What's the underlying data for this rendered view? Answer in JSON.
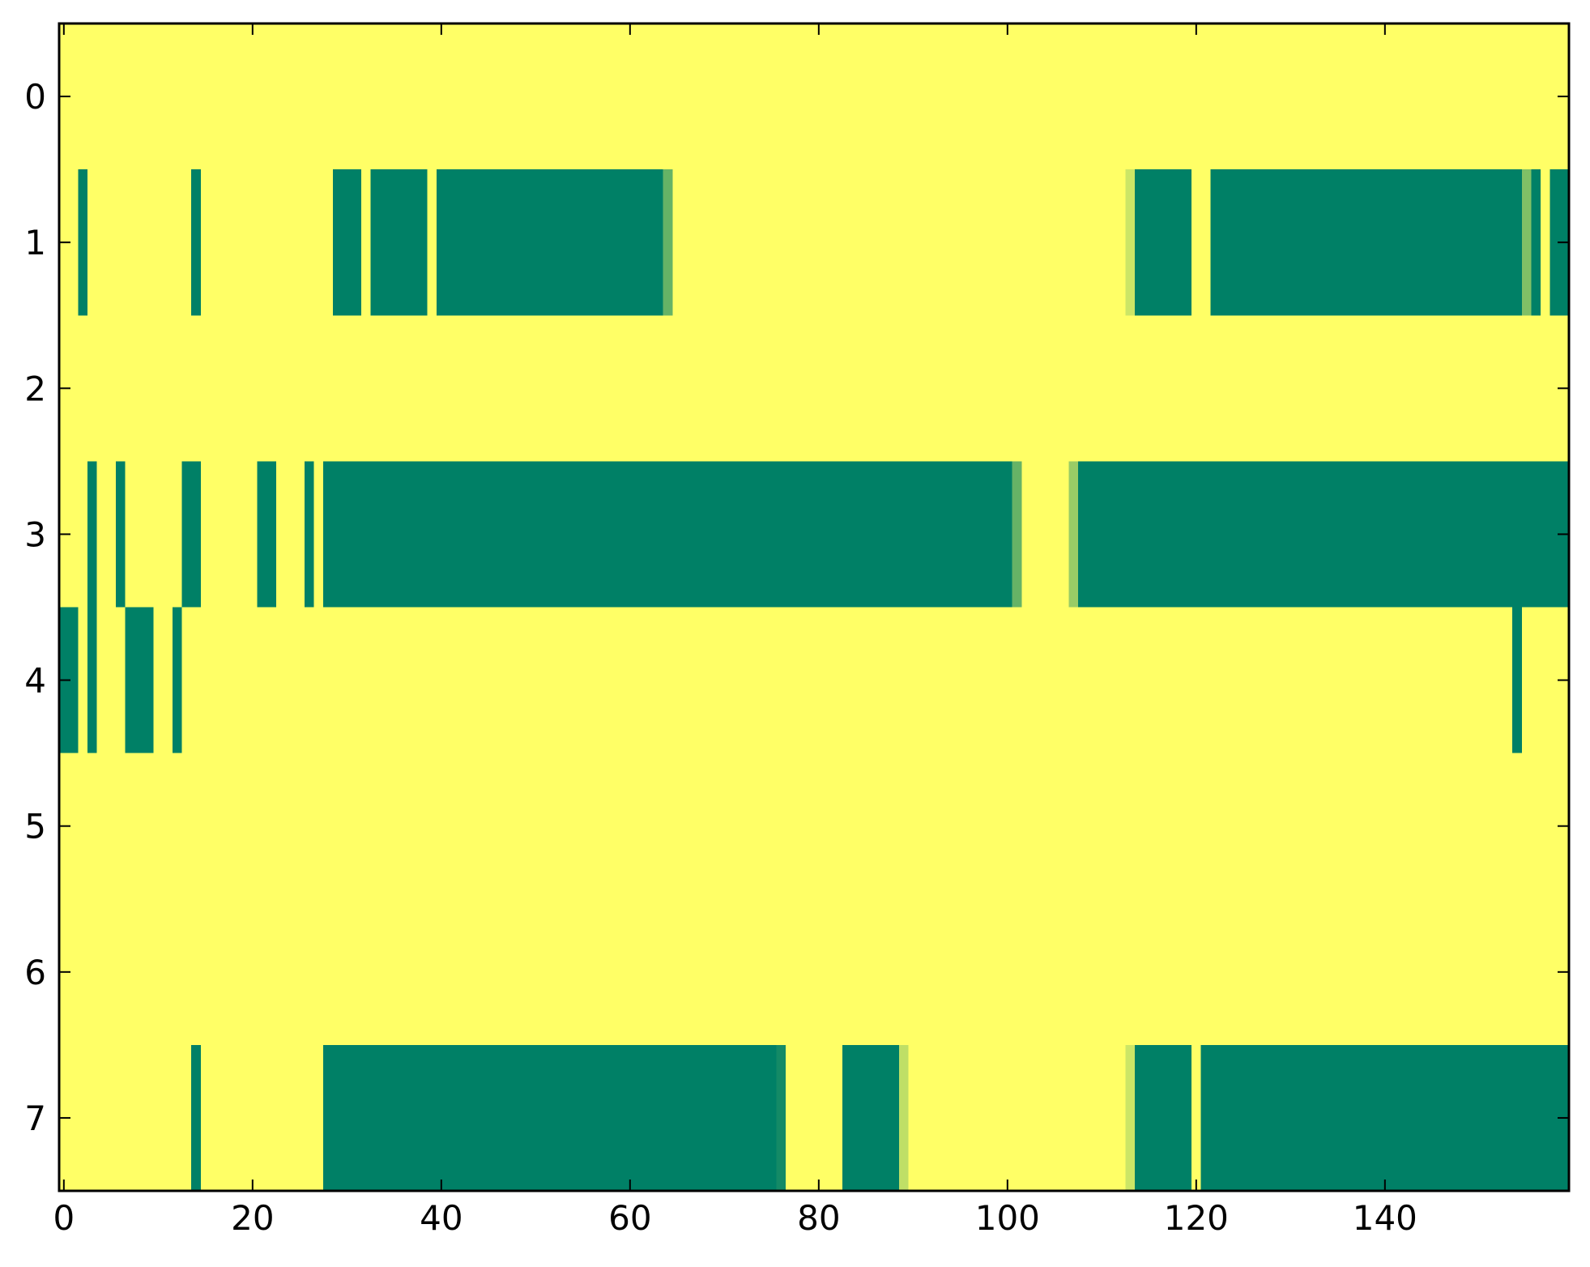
{
  "chart_data": {
    "type": "heatmap",
    "title": "",
    "xlabel": "",
    "ylabel": "",
    "xlim": [
      -0.5,
      159.5
    ],
    "ylim": [
      7.5,
      -0.5
    ],
    "x_ticks": [
      0,
      20,
      40,
      60,
      80,
      100,
      120,
      140
    ],
    "x_tick_labels": [
      "0",
      "20",
      "40",
      "60",
      "80",
      "100",
      "120",
      "140"
    ],
    "y_ticks": [
      0,
      1,
      2,
      3,
      4,
      5,
      6,
      7
    ],
    "y_tick_labels": [
      "0",
      "1",
      "2",
      "3",
      "4",
      "5",
      "6",
      "7"
    ],
    "grid": false,
    "n_columns": 160,
    "n_rows": 8,
    "value_range": [
      0,
      1
    ],
    "colormap": "summer",
    "colors": {
      "low": "#008066",
      "mid": "#80c066",
      "high": "#ffff66"
    },
    "background_value": 1,
    "rows": [
      {
        "row": 0,
        "low_segments": []
      },
      {
        "row": 1,
        "low_segments": [
          {
            "start": 2,
            "end": 2,
            "value": 0
          },
          {
            "start": 14,
            "end": 14,
            "value": 0
          },
          {
            "start": 29,
            "end": 31,
            "value": 0
          },
          {
            "start": 33,
            "end": 38,
            "value": 0
          },
          {
            "start": 40,
            "end": 63,
            "value": 0
          },
          {
            "start": 64,
            "end": 64,
            "value": 0.4
          },
          {
            "start": 113,
            "end": 113,
            "value": 0.8
          },
          {
            "start": 114,
            "end": 119,
            "value": 0
          },
          {
            "start": 122,
            "end": 154,
            "value": 0
          },
          {
            "start": 155,
            "end": 155,
            "value": 0.5
          },
          {
            "start": 156,
            "end": 156,
            "value": 0
          },
          {
            "start": 158,
            "end": 159,
            "value": 0
          }
        ]
      },
      {
        "row": 2,
        "low_segments": []
      },
      {
        "row": 3,
        "low_segments": [
          {
            "start": 3,
            "end": 3,
            "value": 0
          },
          {
            "start": 6,
            "end": 6,
            "value": 0
          },
          {
            "start": 13,
            "end": 14,
            "value": 0
          },
          {
            "start": 21,
            "end": 22,
            "value": 0
          },
          {
            "start": 26,
            "end": 26,
            "value": 0
          },
          {
            "start": 28,
            "end": 100,
            "value": 0
          },
          {
            "start": 101,
            "end": 101,
            "value": 0.4
          },
          {
            "start": 107,
            "end": 107,
            "value": 0.6
          },
          {
            "start": 108,
            "end": 159,
            "value": 0
          }
        ]
      },
      {
        "row": 4,
        "low_segments": [
          {
            "start": 0,
            "end": 1,
            "value": 0
          },
          {
            "start": 3,
            "end": 3,
            "value": 0
          },
          {
            "start": 7,
            "end": 9,
            "value": 0
          },
          {
            "start": 12,
            "end": 12,
            "value": 0
          },
          {
            "start": 154,
            "end": 154,
            "value": 0
          }
        ]
      },
      {
        "row": 5,
        "low_segments": []
      },
      {
        "row": 6,
        "low_segments": []
      },
      {
        "row": 7,
        "low_segments": [
          {
            "start": 14,
            "end": 14,
            "value": 0
          },
          {
            "start": 28,
            "end": 75,
            "value": 0
          },
          {
            "start": 76,
            "end": 76,
            "value": 0.08
          },
          {
            "start": 83,
            "end": 88,
            "value": 0
          },
          {
            "start": 89,
            "end": 89,
            "value": 0.75
          },
          {
            "start": 113,
            "end": 113,
            "value": 0.8
          },
          {
            "start": 114,
            "end": 119,
            "value": 0
          },
          {
            "start": 121,
            "end": 159,
            "value": 0
          }
        ]
      }
    ]
  }
}
